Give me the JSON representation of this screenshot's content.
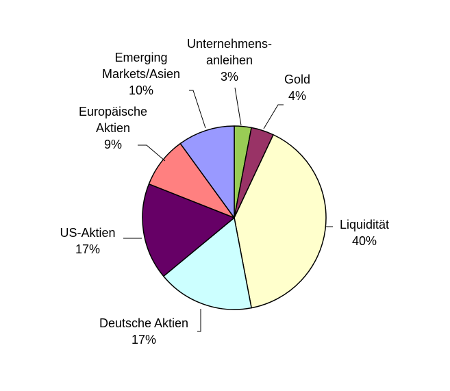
{
  "chart_data": {
    "type": "pie",
    "title": "",
    "start_angle_deg": 0,
    "direction": "clockwise",
    "slices": [
      {
        "label": [
          "Unternehmens-",
          "anleihen"
        ],
        "percent_label": "3%",
        "value": 3,
        "color": "#99CC55"
      },
      {
        "label": [
          "Gold"
        ],
        "percent_label": "4%",
        "value": 4,
        "color": "#993366"
      },
      {
        "label": [
          "Liquidität"
        ],
        "percent_label": "40%",
        "value": 40,
        "color": "#FFFFCC"
      },
      {
        "label": [
          "Deutsche Aktien"
        ],
        "percent_label": "17%",
        "value": 17,
        "color": "#CCFFFF"
      },
      {
        "label": [
          "US-Aktien"
        ],
        "percent_label": "17%",
        "value": 17,
        "color": "#660066"
      },
      {
        "label": [
          "Europäische",
          "Aktien"
        ],
        "percent_label": "9%",
        "value": 9,
        "color": "#FF8080"
      },
      {
        "label": [
          "Emerging",
          "Markets/Asien"
        ],
        "percent_label": "10%",
        "value": 10,
        "color": "#9999FF"
      }
    ]
  }
}
